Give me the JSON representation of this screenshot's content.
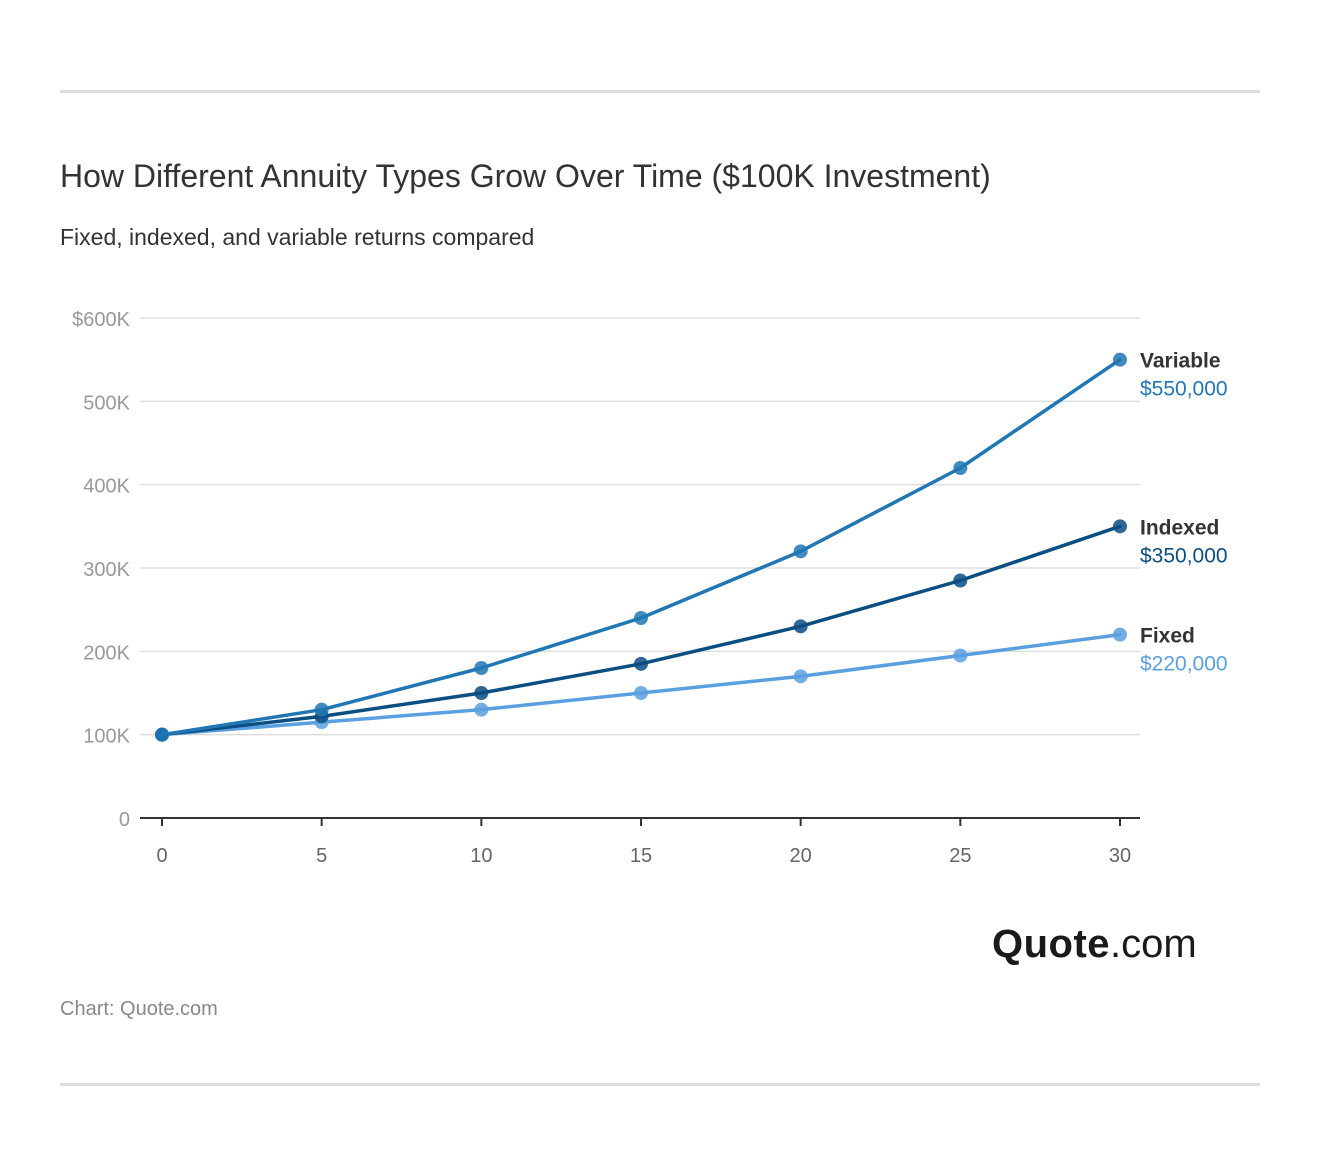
{
  "header": {
    "title": "How Different Annuity Types Grow Over Time ($100K Investment)",
    "subtitle": "Fixed, indexed, and variable returns compared"
  },
  "chart_data": {
    "type": "line",
    "title": "How Different Annuity Types Grow Over Time ($100K Investment)",
    "subtitle": "Fixed, indexed, and variable returns compared",
    "xlabel": "",
    "ylabel": "",
    "x": [
      0,
      5,
      10,
      15,
      20,
      25,
      30
    ],
    "x_tick_labels": [
      "0",
      "5",
      "10",
      "15",
      "20",
      "25",
      "30"
    ],
    "ylim": [
      0,
      600000
    ],
    "y_ticks": [
      0,
      100000,
      200000,
      300000,
      400000,
      500000,
      600000
    ],
    "y_tick_labels": [
      "0",
      "100K",
      "200K",
      "300K",
      "400K",
      "500K",
      "$600K"
    ],
    "grid": true,
    "legend": "end-of-line labels (right)",
    "series": [
      {
        "name": "Variable",
        "end_label": "$550,000",
        "color": "#2077b4",
        "values": [
          100000,
          130000,
          180000,
          240000,
          320000,
          420000,
          550000
        ]
      },
      {
        "name": "Indexed",
        "end_label": "$350,000",
        "color": "#0a4e82",
        "values": [
          100000,
          122000,
          150000,
          185000,
          230000,
          285000,
          350000
        ]
      },
      {
        "name": "Fixed",
        "end_label": "$220,000",
        "color": "#5aa0e0",
        "values": [
          100000,
          115000,
          130000,
          150000,
          170000,
          195000,
          220000
        ]
      }
    ]
  },
  "logo": {
    "brand": "Quote",
    "tld": ".com"
  },
  "footer": {
    "source": "Chart: Quote.com"
  }
}
